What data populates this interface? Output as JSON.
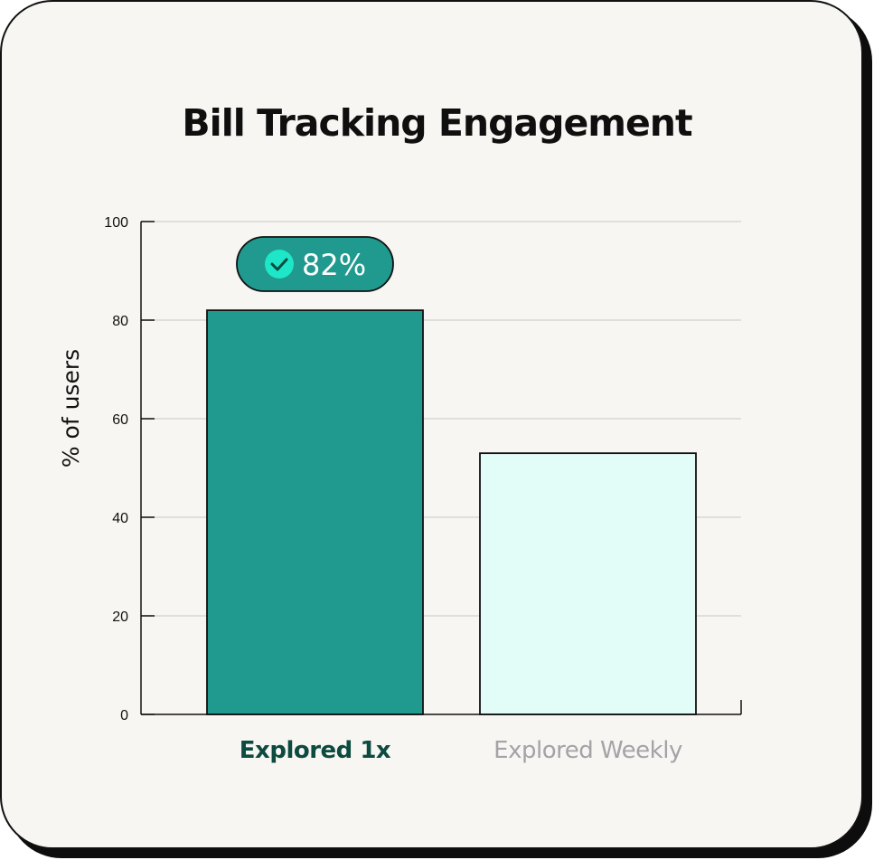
{
  "chart_data": {
    "type": "bar",
    "title": "Bill Tracking Engagement",
    "ylabel": "% of users",
    "xlabel": "",
    "ylim": [
      0,
      100
    ],
    "yticks": [
      0,
      20,
      40,
      60,
      80,
      100
    ],
    "grid": true,
    "categories": [
      "Explored 1x",
      "Explored Weekly"
    ],
    "values": [
      82,
      53
    ],
    "highlight": {
      "category_index": 0,
      "label": "82%",
      "icon": "check-circle-icon"
    }
  },
  "colors": {
    "background": "#f8f6f2",
    "bar_primary": "#20998e",
    "bar_secondary": "#e2fcf7",
    "bar_stroke": "#111111",
    "grid": "#d9d7d3",
    "badge": "#20998e",
    "badge_icon": "#1ee6c8",
    "label_highlight": "#0d4a40",
    "label_muted": "#a3a3a8"
  }
}
